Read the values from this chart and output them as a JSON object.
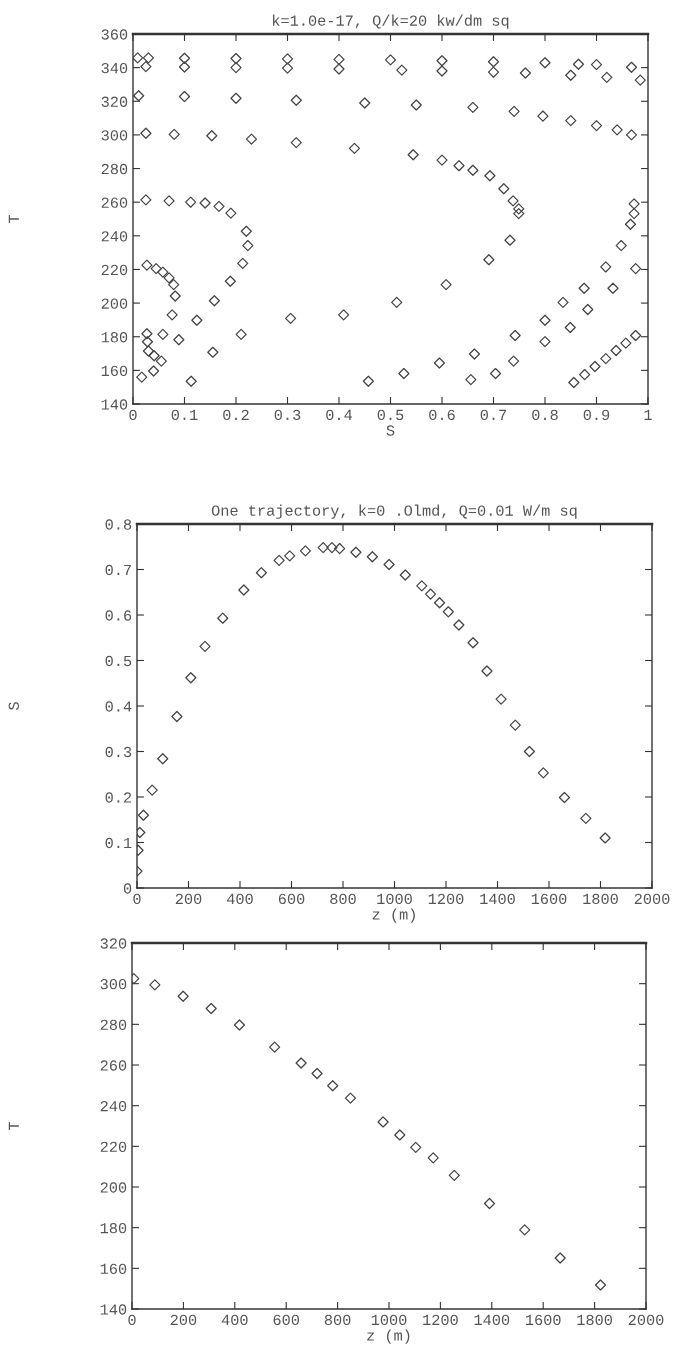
{
  "chart_data": [
    {
      "type": "scatter",
      "title": "k=1.0e-17, Q/k=20 kw/dm sq",
      "xlabel": "S",
      "ylabel": "T",
      "xlim": [
        0,
        1
      ],
      "ylim": [
        140,
        360
      ],
      "xticks": [
        0,
        0.1,
        0.2,
        0.3,
        0.4,
        0.5,
        0.6,
        0.7,
        0.8,
        0.9,
        1
      ],
      "yticks": [
        140,
        160,
        180,
        200,
        220,
        240,
        260,
        280,
        300,
        320,
        340,
        360
      ],
      "marker": "diamond",
      "grid": false,
      "series": [
        {
          "color": "#444444",
          "x": [
            0.009,
            0.03,
            0.1,
            0.2,
            0.3,
            0.4,
            0.5,
            0.6,
            0.7,
            0.8,
            0.865,
            0.9,
            0.968
          ],
          "values": [
            345.8,
            345.8,
            345.6,
            345.4,
            345.2,
            344.9,
            344.6,
            344.1,
            343.5,
            342.9,
            342,
            341.8,
            340.2
          ]
        },
        {
          "color": "#444444",
          "x": [
            0.025,
            0.1,
            0.2,
            0.3,
            0.4,
            0.522,
            0.6,
            0.7,
            0.762,
            0.85,
            0.92,
            0.985
          ],
          "values": [
            340.6,
            340.4,
            340,
            339.7,
            339.2,
            338.5,
            338,
            337.3,
            336.8,
            335.5,
            334.2,
            332.6
          ]
        },
        {
          "color": "#444444",
          "x": [
            0.011,
            0.1,
            0.2,
            0.317,
            0.45,
            0.55,
            0.66,
            0.74,
            0.796,
            0.85,
            0.9,
            0.94,
            0.968
          ],
          "values": [
            323.3,
            322.8,
            321.8,
            320.6,
            319,
            317.8,
            316.4,
            314,
            311.2,
            308.5,
            305.5,
            303,
            300
          ]
        },
        {
          "color": "#444444",
          "x": [
            0.025,
            0.08,
            0.153,
            0.23,
            0.317,
            0.43,
            0.544,
            0.6,
            0.633,
            0.66,
            0.693,
            0.72,
            0.738,
            0.749,
            0.749,
            0.732,
            0.691,
            0.608,
            0.512,
            0.409,
            0.306,
            0.21,
            0.155,
            0.113
          ],
          "values": [
            301,
            300.3,
            299.5,
            297.5,
            295.4,
            292,
            288.2,
            285,
            281.7,
            279,
            275.7,
            268,
            260.8,
            256,
            253.2,
            237.4,
            225.8,
            211,
            200.4,
            193,
            190.9,
            181.4,
            170.8,
            153.5
          ]
        },
        {
          "color": "#444444",
          "x": [
            0.025,
            0.07,
            0.112,
            0.14,
            0.167,
            0.19,
            0.22,
            0.223,
            0.213,
            0.189,
            0.158,
            0.124,
            0.089,
            0.055,
            0.04,
            0.017
          ],
          "values": [
            261.4,
            260.8,
            260,
            259.5,
            257.5,
            253.5,
            242.7,
            234.2,
            223.6,
            213,
            201.4,
            189.8,
            178.2,
            165.5,
            159.6,
            156
          ]
        },
        {
          "color": "#444444",
          "x": [
            0.027,
            0.045,
            0.058,
            0.07,
            0.079,
            0.082,
            0.076,
            0.058,
            0.041
          ],
          "values": [
            222.6,
            220.5,
            218.4,
            215,
            211,
            204.2,
            193,
            181.4,
            168.7
          ]
        },
        {
          "color": "#444444",
          "x": [
            0.027,
            0.028,
            0.03
          ],
          "values": [
            181.8,
            177,
            171.5
          ]
        },
        {
          "color": "#444444",
          "x": [
            0.457,
            0.526,
            0.595,
            0.663,
            0.742,
            0.8,
            0.835,
            0.876,
            0.918,
            0.948,
            0.966,
            0.973,
            0.973
          ],
          "values": [
            153.5,
            158.1,
            164.4,
            169.7,
            180.7,
            189.8,
            200.4,
            208.8,
            221.5,
            234.2,
            246.9,
            253.2,
            259
          ]
        },
        {
          "color": "#444444",
          "x": [
            0.656,
            0.704,
            0.739,
            0.8,
            0.849,
            0.883,
            0.932,
            0.976
          ],
          "values": [
            154.5,
            158.1,
            165.5,
            177.1,
            185.5,
            196.2,
            208.8,
            220.5
          ]
        },
        {
          "color": "#444444",
          "x": [
            0.856,
            0.877,
            0.897,
            0.918,
            0.938,
            0.957,
            0.976
          ],
          "values": [
            152.8,
            157.5,
            162.3,
            167,
            171.8,
            176.2,
            180.7
          ]
        }
      ]
    },
    {
      "type": "scatter",
      "title": "One trajectory, k=0 .Olmd, Q=0.01 W/m sq",
      "xlabel": "z (m)",
      "ylabel": "S",
      "xlim": [
        0,
        2000
      ],
      "ylim": [
        0,
        0.8
      ],
      "xticks": [
        0,
        200,
        400,
        600,
        800,
        1000,
        1200,
        1400,
        1600,
        1800,
        2000
      ],
      "yticks": [
        0,
        0.1,
        0.2,
        0.3,
        0.4,
        0.5,
        0.6,
        0.7,
        0.8
      ],
      "marker": "diamond",
      "grid": false,
      "series": [
        {
          "color": "#444444",
          "x": [
            0,
            4,
            11,
            25,
            59,
            100,
            155,
            209,
            264,
            333,
            415,
            483,
            552,
            593,
            654,
            723,
            757,
            787,
            850,
            914,
            979,
            1042,
            1106,
            1140,
            1175,
            1209,
            1250,
            1305,
            1359,
            1414,
            1469,
            1524,
            1578,
            1660,
            1743,
            1818
          ],
          "values": [
            0.037,
            0.083,
            0.122,
            0.16,
            0.215,
            0.284,
            0.377,
            0.462,
            0.531,
            0.593,
            0.655,
            0.693,
            0.72,
            0.73,
            0.741,
            0.748,
            0.748,
            0.746,
            0.738,
            0.728,
            0.711,
            0.688,
            0.664,
            0.646,
            0.627,
            0.607,
            0.578,
            0.539,
            0.477,
            0.415,
            0.358,
            0.3,
            0.253,
            0.199,
            0.153,
            0.11
          ]
        }
      ]
    },
    {
      "type": "scatter",
      "xlabel": "z (m)",
      "ylabel": "T",
      "xlim": [
        0,
        2000
      ],
      "ylim": [
        140,
        320
      ],
      "xticks": [
        0,
        200,
        400,
        600,
        800,
        1000,
        1200,
        1400,
        1600,
        1800,
        2000
      ],
      "yticks": [
        140,
        160,
        180,
        200,
        220,
        240,
        260,
        280,
        300,
        320
      ],
      "marker": "diamond",
      "grid": false,
      "series": [
        {
          "color": "#444444",
          "x": [
            7,
            89,
            199,
            308,
            418,
            555,
            658,
            720,
            781,
            850,
            977,
            1042,
            1104,
            1172,
            1254,
            1391,
            1528,
            1666,
            1823
          ],
          "values": [
            302.5,
            299.4,
            293.8,
            287.8,
            279.7,
            268.8,
            261,
            255.8,
            249.8,
            243.7,
            232,
            225.6,
            219.5,
            214.3,
            205.7,
            191.9,
            178.9,
            165.1,
            151.8
          ]
        }
      ]
    }
  ]
}
